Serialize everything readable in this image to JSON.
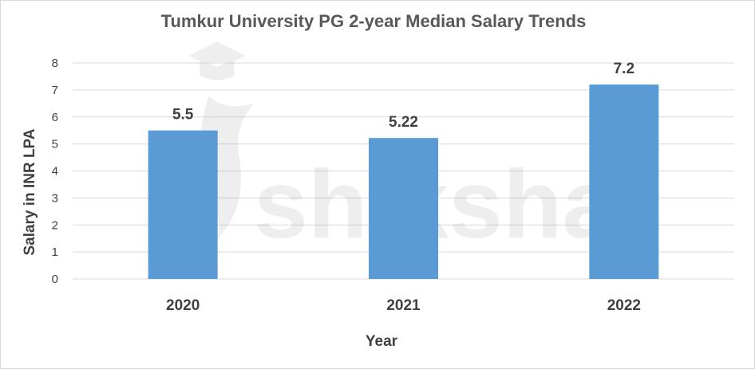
{
  "chart_data": {
    "type": "bar",
    "title": "Tumkur University PG 2-year Median Salary Trends",
    "xlabel": "Year",
    "ylabel": "Salary in INR LPA",
    "categories": [
      "2020",
      "2021",
      "2022"
    ],
    "values": [
      5.5,
      5.22,
      7.2
    ],
    "data_labels": [
      "5.5",
      "5.22",
      "7.2"
    ],
    "ylim": [
      0,
      8
    ],
    "yticks": [
      "0",
      "1",
      "2",
      "3",
      "4",
      "5",
      "6",
      "7",
      "8"
    ],
    "grid": true,
    "legend": "none",
    "colors": {
      "bar": "#5b9bd5",
      "grid": "#d9d9d9",
      "text": "#404040",
      "title": "#595959"
    }
  },
  "watermark": {
    "text": "shiksha"
  }
}
